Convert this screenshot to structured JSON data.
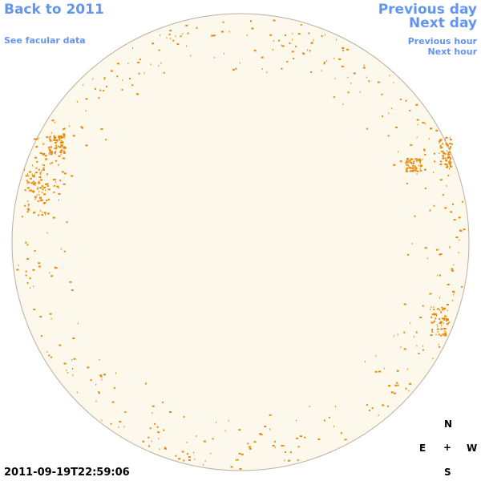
{
  "nav": {
    "back": "Back to 2011",
    "facular": "See facular data",
    "prev_day": "Previous day",
    "next_day": "Next day",
    "prev_hour": "Previous hour",
    "next_hour": "Next hour"
  },
  "timestamp": "2011-09-19T22:59:06",
  "compass": {
    "north": "N",
    "east": "E",
    "center": "+",
    "west": "W",
    "south": "S"
  }
}
